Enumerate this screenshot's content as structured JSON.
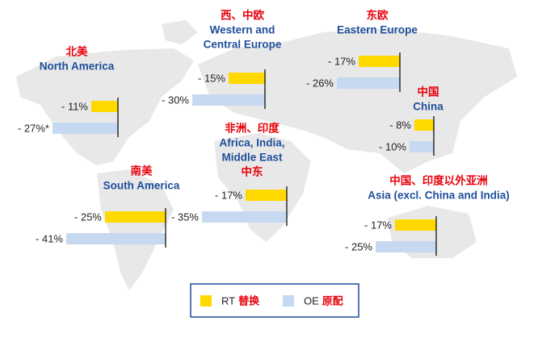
{
  "legend": [
    {
      "name": "RT",
      "label": "替换",
      "color": "#ffd800"
    },
    {
      "name": "OE",
      "label": "原配",
      "color": "#c6d9f1"
    }
  ],
  "chart_data": [
    {
      "type": "bar",
      "title_lines": [
        "北美",
        "North America"
      ],
      "values": [
        -11,
        -27
      ],
      "value_labels": [
        "- 11%",
        "- 27%*"
      ]
    },
    {
      "type": "bar",
      "title_lines": [
        "西、中欧",
        "Western and",
        "Central Europe"
      ],
      "values": [
        -15,
        -30
      ],
      "value_labels": [
        "- 15%",
        "- 30%"
      ]
    },
    {
      "type": "bar",
      "title_lines": [
        "东欧",
        "Eastern Europe"
      ],
      "values": [
        -17,
        -26
      ],
      "value_labels": [
        "- 17%",
        "- 26%"
      ]
    },
    {
      "type": "bar",
      "title_lines": [
        "中国",
        "China"
      ],
      "values": [
        -8,
        -10
      ],
      "value_labels": [
        "- 8%",
        "- 10%"
      ]
    },
    {
      "type": "bar",
      "title_lines": [
        "非洲、印度",
        "Africa, India,",
        "Middle East",
        "中东"
      ],
      "values": [
        -17,
        -35
      ],
      "value_labels": [
        "- 17%",
        "- 35%"
      ]
    },
    {
      "type": "bar",
      "title_lines": [
        "南美",
        "South America"
      ],
      "values": [
        -25,
        -41
      ],
      "value_labels": [
        "- 25%",
        "- 41%"
      ]
    },
    {
      "type": "bar",
      "title_lines": [
        "中国、印度以外亚洲",
        "Asia (excl. China and India)"
      ],
      "values": [
        -17,
        -25
      ],
      "value_labels": [
        "- 17%",
        "- 25%"
      ]
    }
  ]
}
